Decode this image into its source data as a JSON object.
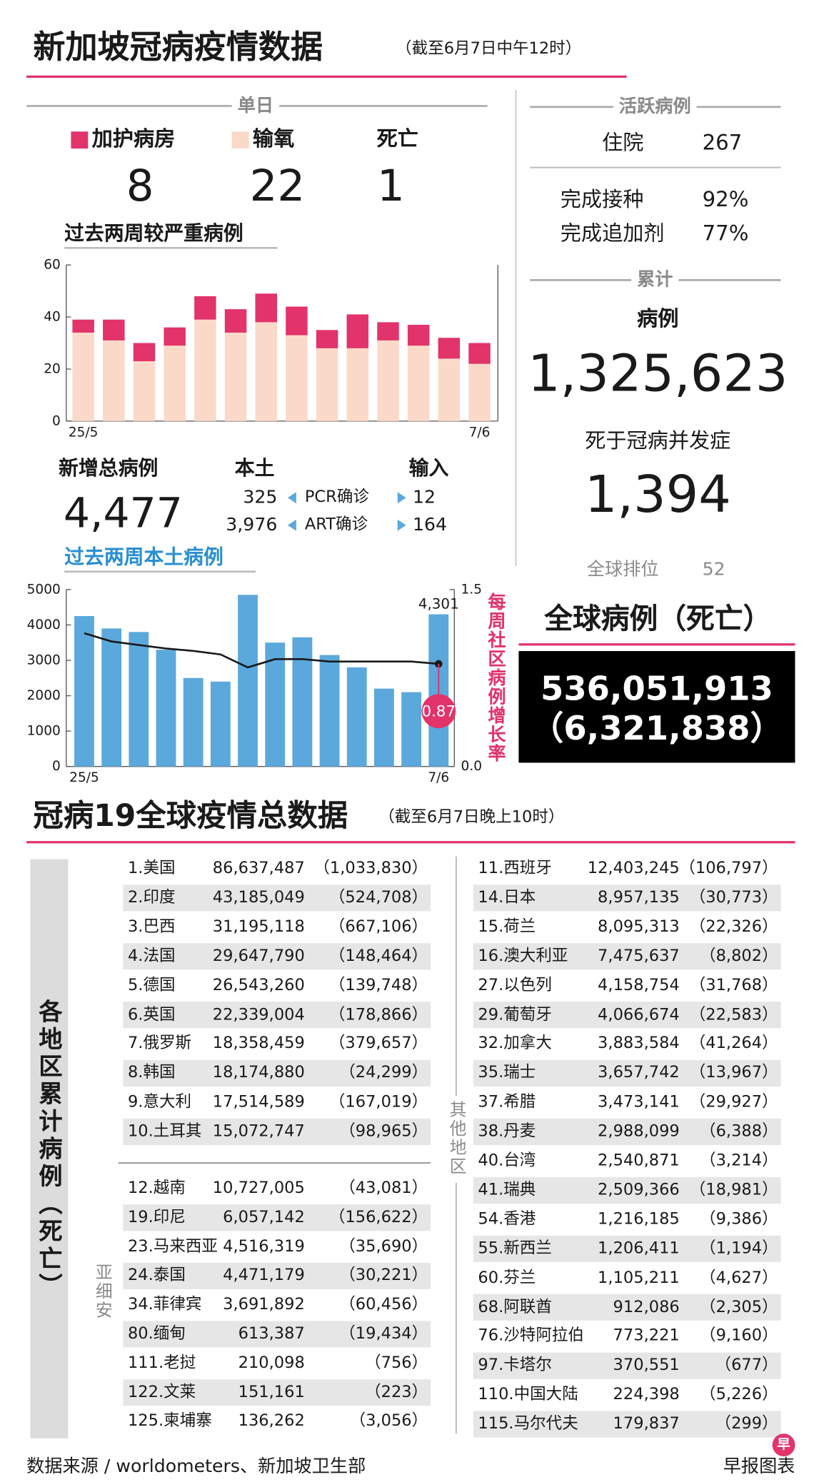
{
  "header": {
    "title": "新加坡冠病疫情数据",
    "note": "（截至6月7日中午12时）"
  },
  "daily": {
    "title": "单日",
    "icu": 8,
    "oxygen": 22,
    "deaths_label": "死亡",
    "deaths": 1
  },
  "chart_data": [
    {
      "type": "stacked_bar",
      "title": "过去两周较严重病例",
      "categories": [
        "25/5",
        null,
        null,
        null,
        null,
        null,
        null,
        null,
        null,
        null,
        null,
        null,
        null,
        "7/6"
      ],
      "series": [
        {
          "name": "输氧",
          "color": "#fbd9c8",
          "values": [
            34,
            31,
            23,
            29,
            39,
            34,
            38,
            33,
            28,
            28,
            31,
            29,
            24,
            22
          ]
        },
        {
          "name": "加护病房",
          "color": "#e2336a",
          "values": [
            5,
            8,
            7,
            7,
            9,
            9,
            11,
            11,
            7,
            13,
            7,
            8,
            8,
            8
          ]
        }
      ],
      "ylim": [
        0,
        60
      ],
      "yticks": [
        0,
        20,
        40,
        60
      ]
    },
    {
      "type": "bar_line",
      "title": "过去两周本土病例",
      "categories": [
        "25/5",
        null,
        null,
        null,
        null,
        null,
        null,
        null,
        null,
        null,
        null,
        null,
        null,
        "7/6"
      ],
      "series": [
        {
          "type": "bar",
          "color": "#5ba8dc",
          "values": [
            4250,
            3900,
            3800,
            3300,
            2500,
            2400,
            4850,
            3500,
            3650,
            3150,
            2800,
            2200,
            2100,
            4301
          ],
          "value_labels": [
            null,
            null,
            null,
            null,
            null,
            null,
            null,
            null,
            null,
            null,
            null,
            null,
            null,
            "4,301"
          ]
        },
        {
          "type": "line",
          "axis": "y2",
          "color": "#1a1a1a",
          "values": [
            1.13,
            1.06,
            1.03,
            1.0,
            0.98,
            0.95,
            0.84,
            0.91,
            0.91,
            0.89,
            0.89,
            0.89,
            0.89,
            0.87
          ],
          "value_labels": [
            null,
            null,
            null,
            null,
            null,
            null,
            null,
            null,
            null,
            null,
            null,
            null,
            null,
            "0.87"
          ],
          "label_color": "#e2336a"
        }
      ],
      "ylim": [
        0,
        5000
      ],
      "yticks": [
        0,
        1000,
        2000,
        3000,
        4000,
        5000
      ],
      "y2lim": [
        0,
        1.5
      ],
      "y2ticks": [
        {
          "value": 0,
          "label": "0.0"
        },
        {
          "value": 1.5,
          "label": "1.5"
        }
      ],
      "y2label": "每周社区病例增长率"
    }
  ],
  "new_cases": {
    "title": "新增总病例",
    "total": "4,477",
    "local_label": "本土",
    "imported_label": "输入",
    "rows": [
      {
        "local": 325,
        "label": "PCR确诊",
        "imported": 12
      },
      {
        "local": "3,976",
        "label": "ART确诊",
        "imported": 164
      }
    ]
  },
  "active": {
    "title": "活跃病例",
    "hospital_label": "住院",
    "hospital": 267,
    "vacc_label": "完成接种",
    "vacc": "92%",
    "booster_label": "完成追加剂",
    "booster": "77%"
  },
  "cumulative": {
    "title": "累计",
    "cases_label": "病例",
    "cases": "1,325,623",
    "deaths_label": "死于冠病并发症",
    "deaths": "1,394",
    "rank_label": "全球排位",
    "rank": 52
  },
  "global": {
    "title": "全球病例（死亡）",
    "cases": "536,051,913",
    "deaths": "（6,321,838）"
  },
  "world": {
    "title": "冠病19全球疫情总数据",
    "note": "（截至6月7日晚上10时）",
    "side_label": "各地区累计病例（死亡）",
    "asean_label": "亚细安",
    "others_label": "其他地区",
    "top10": [
      [
        "1.美国",
        "86,637,487",
        "（1,033,830）"
      ],
      [
        "2.印度",
        "43,185,049",
        "（524,708）"
      ],
      [
        "3.巴西",
        "31,195,118",
        "（667,106）"
      ],
      [
        "4.法国",
        "29,647,790",
        "（148,464）"
      ],
      [
        "5.德国",
        "26,543,260",
        "（139,748）"
      ],
      [
        "6.英国",
        "22,339,004",
        "（178,866）"
      ],
      [
        "7.俄罗斯",
        "18,358,459",
        "（379,657）"
      ],
      [
        "8.韩国",
        "18,174,880",
        "（24,299）"
      ],
      [
        "9.意大利",
        "17,514,589",
        "（167,019）"
      ],
      [
        "10.土耳其",
        "15,072,747",
        "（98,965）"
      ]
    ],
    "asean": [
      [
        "12.越南",
        "10,727,005",
        "（43,081）"
      ],
      [
        "19.印尼",
        "6,057,142",
        "（156,622）"
      ],
      [
        "23.马来西亚",
        "4,516,319",
        "（35,690）"
      ],
      [
        "24.泰国",
        "4,471,179",
        "（30,221）"
      ],
      [
        "34.菲律宾",
        "3,691,892",
        "（60,456）"
      ],
      [
        "80.缅甸",
        "613,387",
        "（19,434）"
      ],
      [
        "111.老挝",
        "210,098",
        "（756）"
      ],
      [
        "122.文莱",
        "151,161",
        "（223）"
      ],
      [
        "125.柬埔寨",
        "136,262",
        "（3,056）"
      ]
    ],
    "others": [
      [
        "11.西班牙",
        "12,403,245",
        "（106,797）"
      ],
      [
        "14.日本",
        "8,957,135",
        "（30,773）"
      ],
      [
        "15.荷兰",
        "8,095,313",
        "（22,326）"
      ],
      [
        "16.澳大利亚",
        "7,475,637",
        "（8,802）"
      ],
      [
        "27.以色列",
        "4,158,754",
        "（31,768）"
      ],
      [
        "29.葡萄牙",
        "4,066,674",
        "（22,583）"
      ],
      [
        "32.加拿大",
        "3,883,584",
        "（41,264）"
      ],
      [
        "35.瑞士",
        "3,657,742",
        "（13,967）"
      ],
      [
        "37.希腊",
        "3,473,141",
        "（29,927）"
      ],
      [
        "38.丹麦",
        "2,988,099",
        "（6,388）"
      ],
      [
        "40.台湾",
        "2,540,871",
        "（3,214）"
      ],
      [
        "41.瑞典",
        "2,509,366",
        "（18,981）"
      ],
      [
        "54.香港",
        "1,216,185",
        "（9,386）"
      ],
      [
        "55.新西兰",
        "1,206,411",
        "（1,194）"
      ],
      [
        "60.芬兰",
        "1,105,211",
        "（4,627）"
      ],
      [
        "68.阿联酋",
        "912,086",
        "（2,305）"
      ],
      [
        "76.沙特阿拉伯",
        "773,221",
        "（9,160）"
      ],
      [
        "97.卡塔尔",
        "370,551",
        "（677）"
      ],
      [
        "110.中国大陆",
        "224,398",
        "（5,226）"
      ],
      [
        "115.马尔代夫",
        "179,837",
        "（299）"
      ]
    ]
  },
  "footer": {
    "source": "数据来源 / worldometers、新加坡卫生部",
    "credit": "早报图表",
    "logo": "早"
  }
}
